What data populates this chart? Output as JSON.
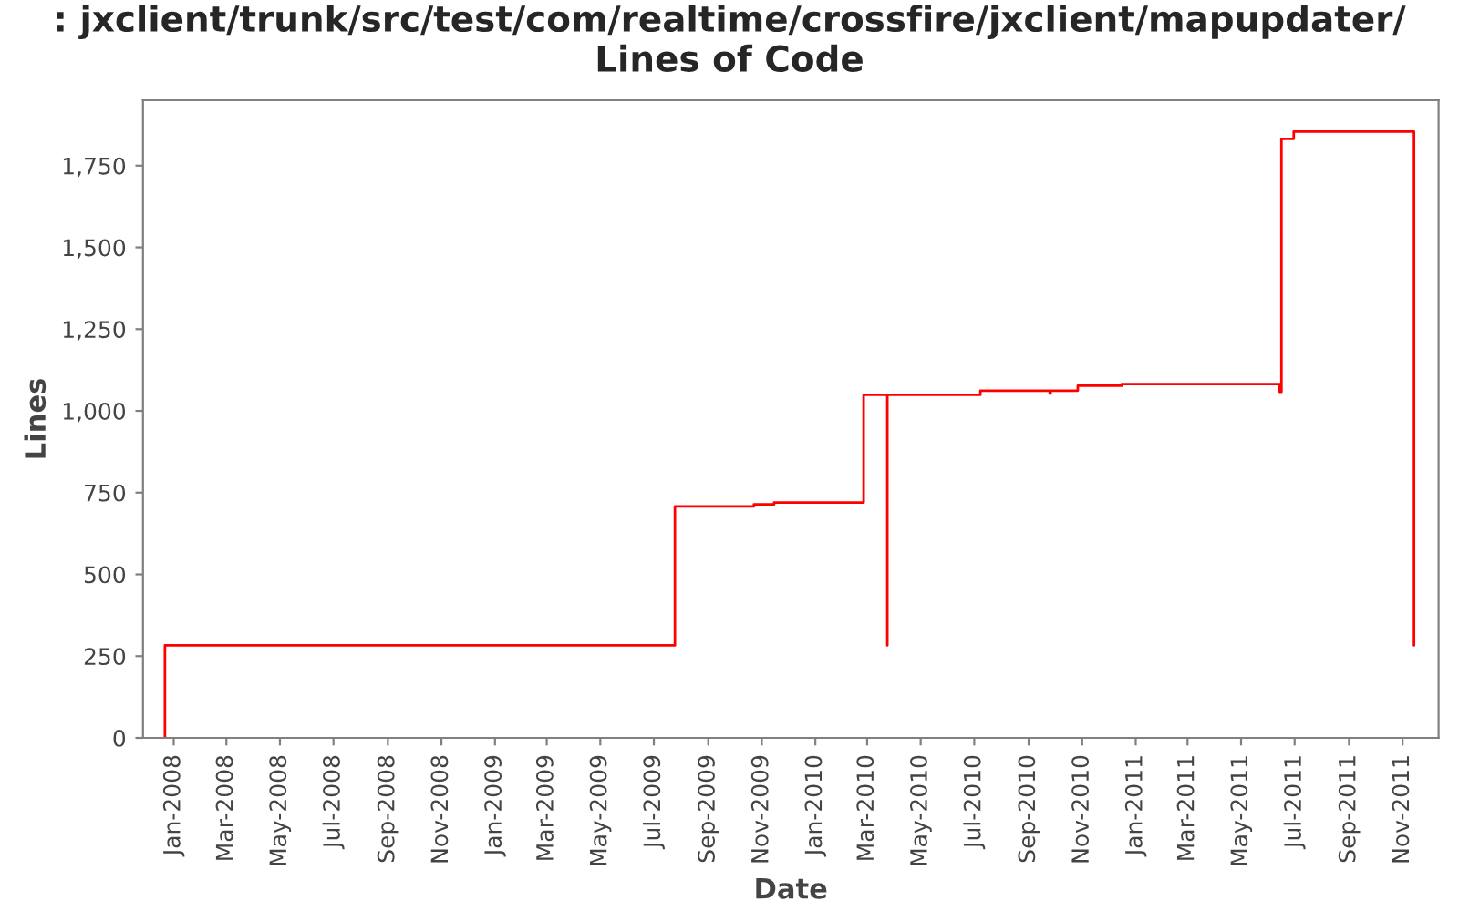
{
  "chart_data": {
    "type": "step",
    "title": ": jxclient/trunk/src/test/com/realtime/crossfire/jxclient/mapupdater/\nLines of Code",
    "xlabel": "Date",
    "ylabel": "Lines",
    "series": [
      {
        "color": "#ff0000",
        "x": [
          "2007-12-22",
          "2007-12-22",
          "2009-07-25",
          "2009-10-23",
          "2009-11-15",
          "2010-02-25",
          "2010-03-24",
          "2010-03-24",
          "2010-07-08",
          "2010-09-25",
          "2010-09-26",
          "2010-10-27",
          "2010-12-16",
          "2011-06-14",
          "2011-06-16",
          "2011-06-30",
          "2011-11-14"
        ],
        "values": [
          0,
          283,
          708,
          714,
          720,
          1049,
          283,
          1049,
          1062,
          1053,
          1062,
          1077,
          1082,
          1058,
          1832,
          1854,
          283
        ]
      }
    ],
    "xlim": [
      "2007-11-27",
      "2011-12-12"
    ],
    "ylim": [
      0,
      1950
    ],
    "xticks": [
      {
        "value": "2008-01-01",
        "label": "Jan-2008"
      },
      {
        "value": "2008-03-01",
        "label": "Mar-2008"
      },
      {
        "value": "2008-05-01",
        "label": "May-2008"
      },
      {
        "value": "2008-07-01",
        "label": "Jul-2008"
      },
      {
        "value": "2008-09-01",
        "label": "Sep-2008"
      },
      {
        "value": "2008-11-01",
        "label": "Nov-2008"
      },
      {
        "value": "2009-01-01",
        "label": "Jan-2009"
      },
      {
        "value": "2009-03-01",
        "label": "Mar-2009"
      },
      {
        "value": "2009-05-01",
        "label": "May-2009"
      },
      {
        "value": "2009-07-01",
        "label": "Jul-2009"
      },
      {
        "value": "2009-09-01",
        "label": "Sep-2009"
      },
      {
        "value": "2009-11-01",
        "label": "Nov-2009"
      },
      {
        "value": "2010-01-01",
        "label": "Jan-2010"
      },
      {
        "value": "2010-03-01",
        "label": "Mar-2010"
      },
      {
        "value": "2010-05-01",
        "label": "May-2010"
      },
      {
        "value": "2010-07-01",
        "label": "Jul-2010"
      },
      {
        "value": "2010-09-01",
        "label": "Sep-2010"
      },
      {
        "value": "2010-11-01",
        "label": "Nov-2010"
      },
      {
        "value": "2011-01-01",
        "label": "Jan-2011"
      },
      {
        "value": "2011-03-01",
        "label": "Mar-2011"
      },
      {
        "value": "2011-05-01",
        "label": "May-2011"
      },
      {
        "value": "2011-07-01",
        "label": "Jul-2011"
      },
      {
        "value": "2011-09-01",
        "label": "Sep-2011"
      },
      {
        "value": "2011-11-01",
        "label": "Nov-2011"
      }
    ],
    "yticks": [
      0,
      250,
      500,
      750,
      {
        "value": 1000,
        "label": "1,000"
      },
      {
        "value": 1250,
        "label": "1,250"
      },
      {
        "value": 1500,
        "label": "1,500"
      },
      {
        "value": 1750,
        "label": "1,750"
      }
    ],
    "grid": false,
    "legend": false,
    "marker": "none",
    "line_style": "solid"
  }
}
